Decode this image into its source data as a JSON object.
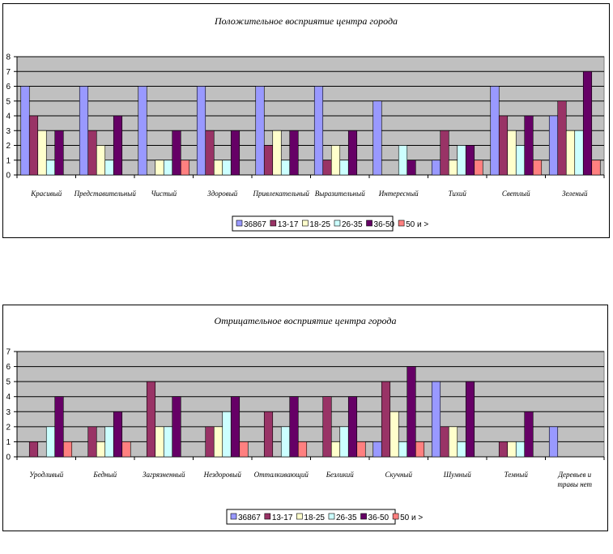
{
  "chart_data": [
    {
      "type": "bar",
      "title": "Положительное восприятие центра города",
      "ylim": [
        0,
        8
      ],
      "yticks": [
        0,
        1,
        2,
        3,
        4,
        5,
        6,
        7,
        8
      ],
      "grid": true,
      "legend_position": "bottom",
      "categories": [
        "Красивый",
        "Представительный",
        "Чистый",
        "Здоровый",
        "Привлекательный",
        "Выразительный",
        "Интересный",
        "Тихий",
        "Светлый",
        "Зеленый"
      ],
      "series": [
        {
          "name": "36867",
          "color": "#9999ff",
          "values": [
            6,
            6,
            6,
            6,
            6,
            6,
            5,
            1,
            6,
            4
          ]
        },
        {
          "name": "13-17",
          "color": "#993366",
          "values": [
            4,
            3,
            0,
            3,
            2,
            1,
            0,
            3,
            4,
            5
          ]
        },
        {
          "name": "18-25",
          "color": "#ffffcc",
          "values": [
            3,
            2,
            1,
            1,
            3,
            2,
            0,
            1,
            3,
            3
          ]
        },
        {
          "name": "26-35",
          "color": "#ccffff",
          "values": [
            1,
            1,
            1,
            1,
            1,
            1,
            2,
            2,
            2,
            3
          ]
        },
        {
          "name": "36-50",
          "color": "#660066",
          "values": [
            3,
            4,
            3,
            3,
            3,
            3,
            1,
            2,
            4,
            7
          ]
        },
        {
          "name": "50 и >",
          "color": "#ff8080",
          "values": [
            0,
            0,
            1,
            0,
            0,
            0,
            0,
            1,
            1,
            1
          ]
        }
      ]
    },
    {
      "type": "bar",
      "title": "Отрицательное восприятие центра города",
      "ylim": [
        0,
        7
      ],
      "yticks": [
        0,
        1,
        2,
        3,
        4,
        5,
        6,
        7
      ],
      "grid": true,
      "legend_position": "bottom",
      "categories": [
        "Уродливый",
        "Бедный",
        "Загрязненный",
        "Нездоровый",
        "Отталкивающий",
        "Безликий",
        "Скучный",
        "Шумный",
        "Темный",
        [
          "Деревьев и",
          "травы нет"
        ]
      ],
      "series": [
        {
          "name": "36867",
          "color": "#9999ff",
          "values": [
            0,
            0,
            0,
            0,
            0,
            0,
            1,
            5,
            0,
            2
          ]
        },
        {
          "name": "13-17",
          "color": "#993366",
          "values": [
            1,
            2,
            5,
            2,
            3,
            4,
            5,
            2,
            1,
            0
          ]
        },
        {
          "name": "18-25",
          "color": "#ffffcc",
          "values": [
            0,
            1,
            2,
            2,
            0,
            1,
            3,
            2,
            1,
            0
          ]
        },
        {
          "name": "26-35",
          "color": "#ccffff",
          "values": [
            2,
            2,
            2,
            3,
            2,
            2,
            1,
            1,
            1,
            0
          ]
        },
        {
          "name": "36-50",
          "color": "#660066",
          "values": [
            4,
            3,
            4,
            4,
            4,
            4,
            6,
            5,
            3,
            0
          ]
        },
        {
          "name": "50 и >",
          "color": "#ff8080",
          "values": [
            1,
            1,
            0,
            1,
            1,
            1,
            1,
            0,
            0,
            0
          ]
        }
      ]
    }
  ]
}
